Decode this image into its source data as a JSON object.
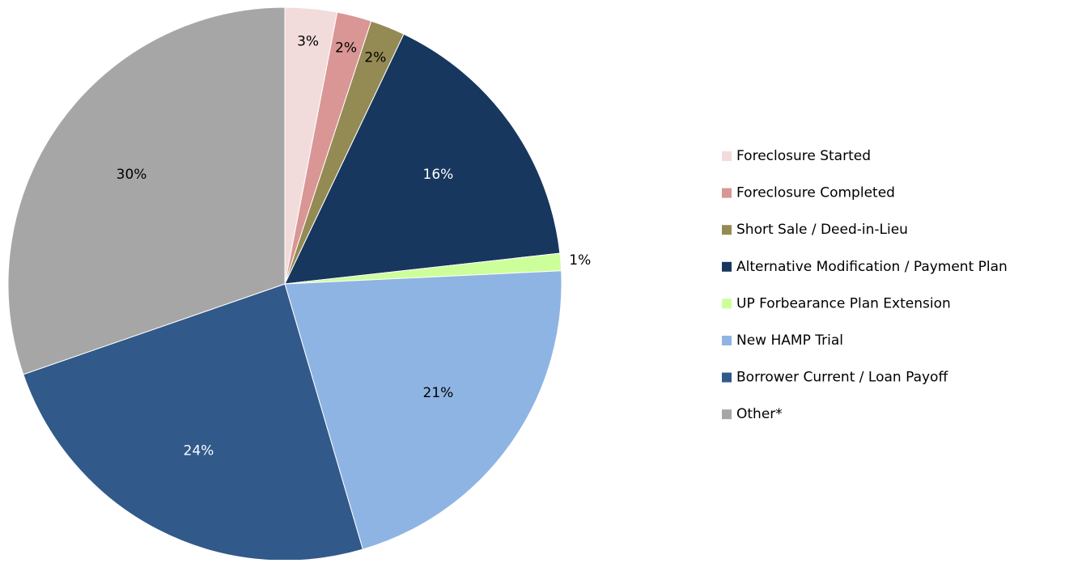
{
  "chart_data": {
    "type": "pie",
    "categories": [
      "Foreclosure Started",
      "Foreclosure Completed",
      "Short Sale / Deed-in-Lieu",
      "Alternative Modification / Payment Plan",
      "UP Forbearance Plan Extension",
      "New HAMP Trial",
      "Borrower Current / Loan Payoff",
      "Other*"
    ],
    "values": [
      3,
      2,
      2,
      16,
      1,
      21,
      24,
      30
    ],
    "value_labels": [
      "3%",
      "2%",
      "2%",
      "16%",
      "1%",
      "21%",
      "24%",
      "30%"
    ],
    "colors": [
      "#f2dcdb",
      "#d99694",
      "#948a54",
      "#17375e",
      "#ccff99",
      "#8eb4e3",
      "#31598a",
      "#a6a6a6"
    ],
    "legend": "right"
  }
}
